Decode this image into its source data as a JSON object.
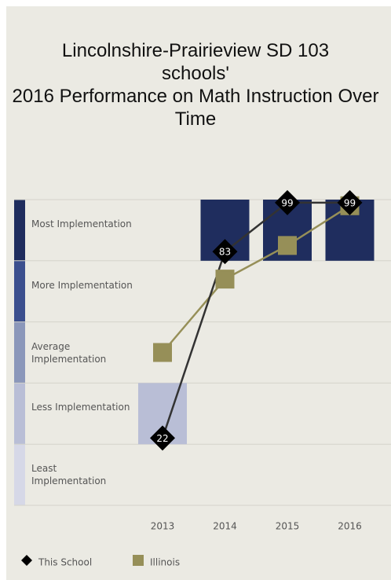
{
  "chart_data": {
    "type": "line",
    "title": "Lincolnshire-Prairieview SD 103 schools'",
    "subtitle": "2016 Performance on Math Instruction Over Time",
    "categories": [
      "2013",
      "2014",
      "2015",
      "2016"
    ],
    "ylim": [
      0,
      100
    ],
    "yticks": [
      0,
      20,
      40,
      60,
      80,
      100
    ],
    "bands": [
      {
        "name": "Least Implementation",
        "color": "#d6d8e7"
      },
      {
        "name": "Less Implementation",
        "color": "#b9bed6"
      },
      {
        "name": "Average Implementation",
        "color": "#8b97ba"
      },
      {
        "name": "More Implementation",
        "color": "#3b4f8e"
      },
      {
        "name": "Most Implementation",
        "color": "#1f2d5e"
      }
    ],
    "series": [
      {
        "name": "This School",
        "color": "#333333",
        "marker": "diamond",
        "values": [
          22,
          83,
          99,
          99
        ]
      },
      {
        "name": "Illinois",
        "color": "#968f58",
        "marker": "square",
        "values": [
          50,
          74,
          85,
          98
        ]
      }
    ]
  }
}
